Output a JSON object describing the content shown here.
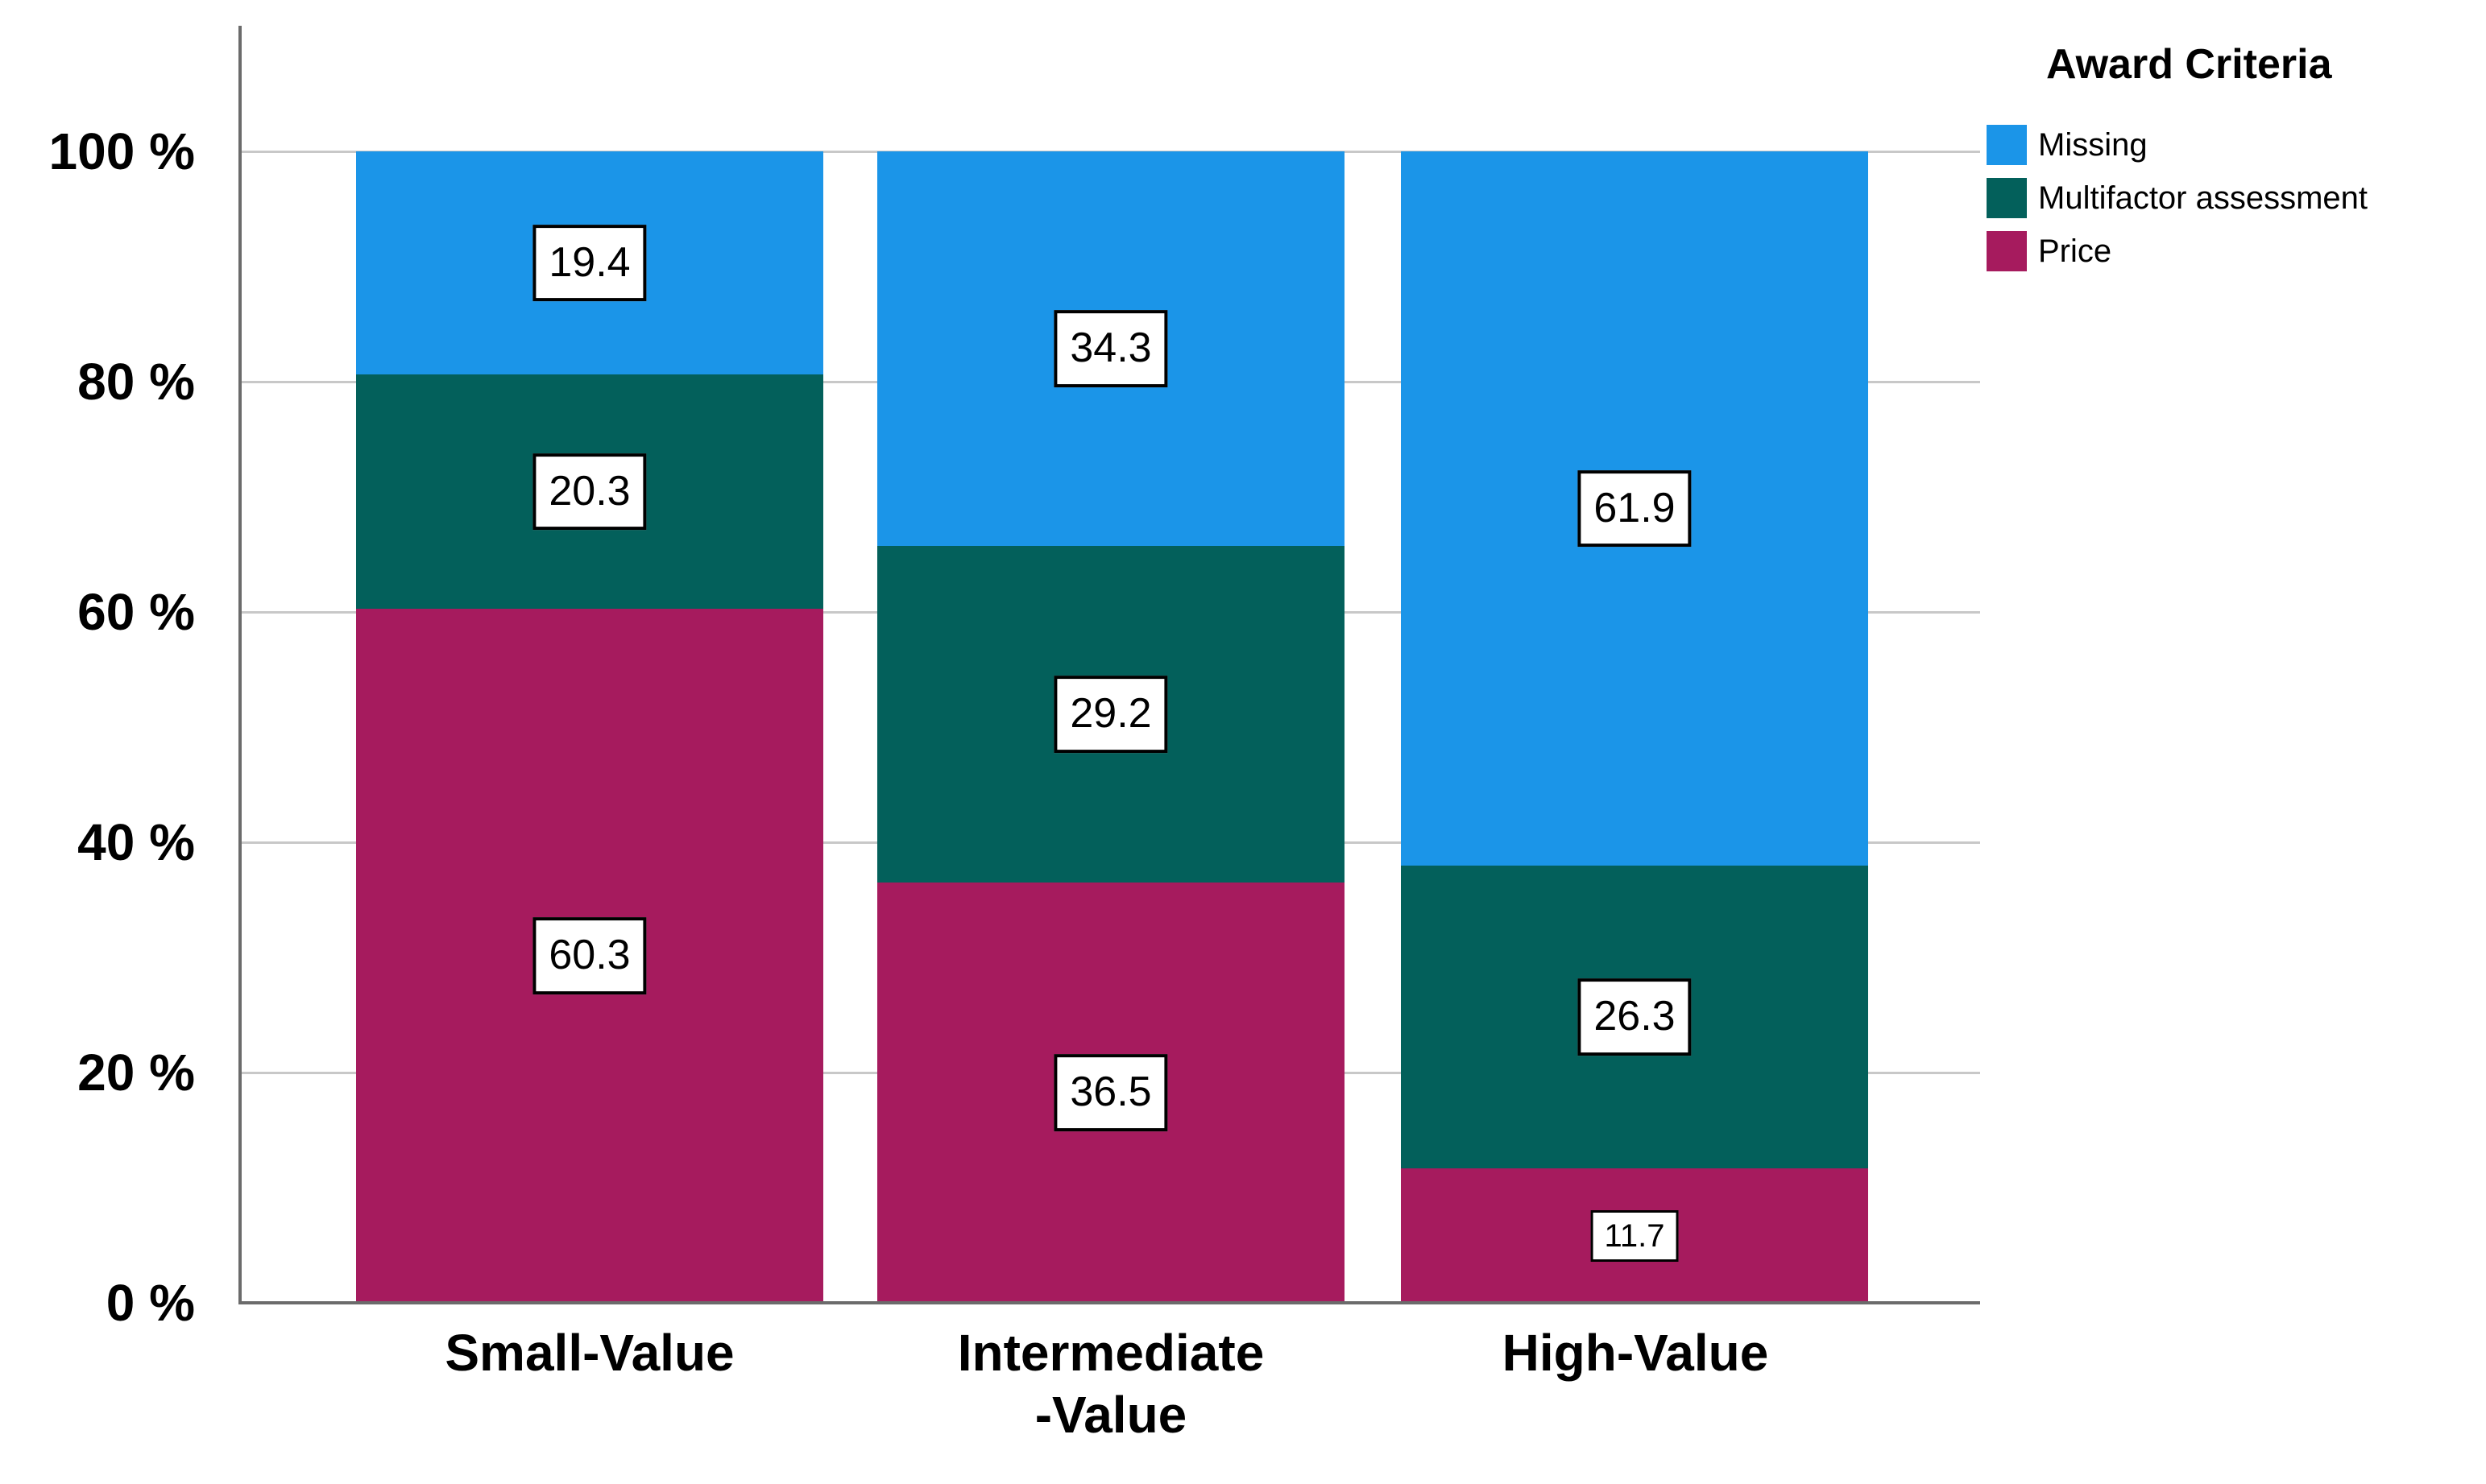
{
  "chart_data": {
    "type": "bar",
    "stacked": true,
    "units": "percent",
    "categories": [
      "Small-Value",
      "Intermediate\n-Value",
      "High-Value"
    ],
    "series": [
      {
        "name": "Missing",
        "color": "#1b95e8",
        "values": [
          19.4,
          34.3,
          61.9
        ]
      },
      {
        "name": "Multifactor assessment",
        "color": "#03605b",
        "values": [
          20.3,
          29.2,
          26.3
        ]
      },
      {
        "name": "Price",
        "color": "#a61b5e",
        "values": [
          60.3,
          36.5,
          11.7
        ]
      }
    ],
    "y_axis": {
      "ticks": [
        "100 %",
        "80 %",
        "60 %",
        "40 %",
        "20 %",
        "0 %"
      ],
      "range": [
        0,
        100
      ],
      "grid": true
    },
    "legend": {
      "title": "Award Criteria",
      "position": "top-right"
    },
    "value_label_style": "boxed",
    "axis_color": "#6b6b6b",
    "gridline_color": "#c8c8c8"
  }
}
